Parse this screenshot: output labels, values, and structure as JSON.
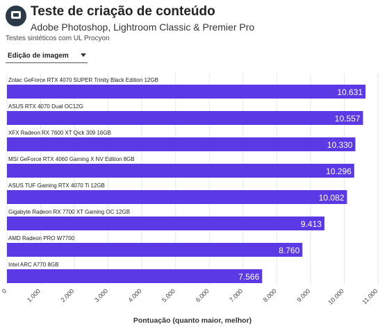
{
  "header": {
    "title": "Teste de criação de conteúdo",
    "subtitle": "Adobe Photoshop, Lightroom Classic & Premier Pro",
    "note": "Testes sintéticos com UL Procyon"
  },
  "dropdown": {
    "selected": "Edição de imagem"
  },
  "colors": {
    "bar": "#5b3ae6",
    "grid": "#e6e6e6",
    "logo": "#2b3a46"
  },
  "icons": {
    "logo": "chat-bubble-logo-icon",
    "dropdown": "chevron-down-icon"
  },
  "chart_data": {
    "type": "bar",
    "orientation": "horizontal",
    "categories": [
      "Zotac GeForce RTX 4070 SUPER Trinity Black Edition 12GB",
      "ASUS RTX 4070 Dual OC12G",
      "XFX Radeon RX 7600 XT Qick 309 16GB",
      "MSI GeForce RTX 4060 Gaming X NV Edition 8GB",
      "ASUS TUF Gaming RTX 4070 Ti 12GB",
      "Gigabyte Radeon RX 7700 XT Gaming OC 12GB",
      "AMD Radeon PRO W7700",
      "Intel ARC A770 8GB"
    ],
    "values": [
      10631,
      10557,
      10330,
      10296,
      10082,
      9413,
      8760,
      7566
    ],
    "value_labels": [
      "10.631",
      "10.557",
      "10.330",
      "10.296",
      "10.082",
      "9.413",
      "8.760",
      "7.566"
    ],
    "xlabel": "Pontuação (quanto maior, melhor)",
    "xlim": [
      0,
      11000
    ],
    "ticks": [
      0,
      1000,
      2000,
      3000,
      4000,
      5000,
      6000,
      7000,
      8000,
      9000,
      10000,
      11000
    ],
    "tick_labels": [
      "0",
      "1.000",
      "2.000",
      "3.000",
      "4.000",
      "5.000",
      "6.000",
      "7.000",
      "8.000",
      "9.000",
      "10.000",
      "11.000"
    ],
    "grid": true
  }
}
